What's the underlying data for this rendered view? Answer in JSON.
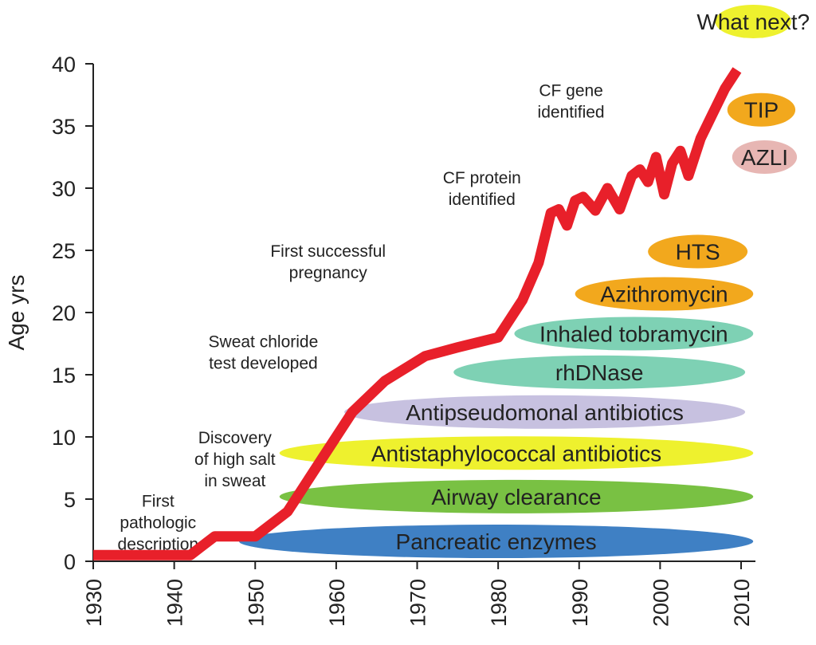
{
  "chart_data": {
    "type": "line",
    "ylabel": "Age yrs",
    "xlim": [
      1930,
      2010
    ],
    "ylim": [
      0,
      40
    ],
    "x_ticks": [
      "1930",
      "1940",
      "1950",
      "1960",
      "1970",
      "1980",
      "1990",
      "2000",
      "2010"
    ],
    "y_ticks": [
      "0",
      "5",
      "10",
      "15",
      "20",
      "25",
      "30",
      "35",
      "40"
    ],
    "series": [
      {
        "color": "#e8202a",
        "x": [
          1930,
          1942,
          1945,
          1950,
          1954,
          1958,
          1962,
          1966,
          1971,
          1975,
          1980,
          1983,
          1985,
          1986.5,
          1987.5,
          1988.5,
          1989.5,
          1990.5,
          1992,
          1993.5,
          1995,
          1996.5,
          1997.5,
          1998.5,
          1999.5,
          2000.5,
          2001.5,
          2002.5,
          2003.5,
          2005,
          2006.5,
          2008,
          2009.5
        ],
        "y": [
          0.5,
          0.5,
          2,
          2,
          4,
          8,
          12,
          14.5,
          16.5,
          17.2,
          18,
          21,
          24,
          28,
          28.3,
          27,
          29,
          29.3,
          28.2,
          30,
          28.3,
          31,
          31.5,
          30.5,
          32.5,
          29.5,
          32,
          33,
          31,
          34,
          36,
          38,
          39.5
        ]
      }
    ],
    "annotations": [
      {
        "lines": [
          "First",
          "pathologic",
          "description"
        ],
        "x": 1938,
        "y": 4.4
      },
      {
        "lines": [
          "Discovery",
          "of high salt",
          "in sweat"
        ],
        "x": 1947.5,
        "y": 9.5
      },
      {
        "lines": [
          "Sweat chloride",
          "test developed"
        ],
        "x": 1951,
        "y": 17.2
      },
      {
        "lines": [
          "First successful",
          "pregnancy"
        ],
        "x": 1959,
        "y": 24.5
      },
      {
        "lines": [
          "CF protein",
          "identified"
        ],
        "x": 1978,
        "y": 30.4
      },
      {
        "lines": [
          "CF gene",
          "identified"
        ],
        "x": 1989,
        "y": 37.4
      }
    ],
    "therapies": [
      {
        "label": "Pancreatic enzymes",
        "x_start": 1948,
        "x_end": 2011.5,
        "y": 1.6,
        "color": "#3f80c4"
      },
      {
        "label": "Airway clearance",
        "x_start": 1953,
        "x_end": 2011.5,
        "y": 5.2,
        "color": "#79c143"
      },
      {
        "label": "Antistaphylococcal antibiotics",
        "x_start": 1953,
        "x_end": 2011.5,
        "y": 8.7,
        "color": "#eef12e"
      },
      {
        "label": "Antipseudomonal antibiotics",
        "x_start": 1961,
        "x_end": 2010.5,
        "y": 12,
        "color": "#c7c1e0"
      },
      {
        "label": "rhDNase",
        "x_start": 1974.5,
        "x_end": 2010.5,
        "y": 15.2,
        "color": "#7ed1b4"
      },
      {
        "label": "Inhaled tobramycin",
        "x_start": 1982,
        "x_end": 2011.5,
        "y": 18.3,
        "color": "#7ed1b4"
      },
      {
        "label": "Azithromycin",
        "x_start": 1989.5,
        "x_end": 2011.5,
        "y": 21.5,
        "color": "#f2a81d"
      },
      {
        "label": "HTS",
        "x_start": 1998.5,
        "x_end": 2010.8,
        "y": 24.9,
        "color": "#f2a81d"
      },
      {
        "label": "AZLI",
        "x_start": 2008.9,
        "x_end": 2016.9,
        "y": 32.5,
        "color": "#e7b6b3"
      },
      {
        "label": "TIP",
        "x_start": 2008.3,
        "x_end": 2016.7,
        "y": 36.3,
        "color": "#f2a81d"
      },
      {
        "label": "What next?",
        "x_start": 2006.8,
        "x_end": 2016.2,
        "y": 43.4,
        "color": "#eef12e"
      }
    ]
  }
}
